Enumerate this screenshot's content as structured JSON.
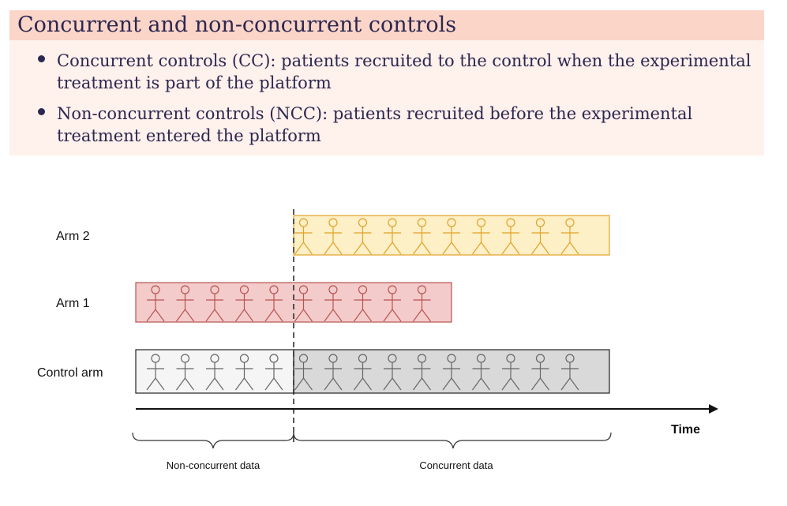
{
  "slide": {
    "title": "Concurrent and non-concurrent controls",
    "bullets": [
      {
        "text": "Concurrent controls (CC): patients recruited to the control when the experimental treatment is part of the platform"
      },
      {
        "text": "Non-concurrent controls (NCC): patients recruited before the experimental treatment entered the platform"
      }
    ]
  },
  "diagram": {
    "rows": [
      {
        "label": "Arm 2",
        "icon": "person-icon",
        "count": 10,
        "color": "#e3a227",
        "fill": "#fdefc6",
        "start_slot": 5
      },
      {
        "label": "Arm 1",
        "icon": "person-icon",
        "count": 10,
        "color": "#b85450",
        "fill": "#f3cbcb",
        "start_slot": 0
      },
      {
        "label": "Control arm",
        "icon": "person-icon",
        "count": 15,
        "color": "#666666",
        "fill_nonconcurrent": "#f5f5f5",
        "fill_concurrent": "#d9d9d9",
        "start_slot": 0
      }
    ],
    "time_label": "Time",
    "brace_labels": {
      "nonconcurrent": "Non-concurrent data",
      "concurrent": "Concurrent data"
    },
    "colors": {
      "header_bg": "#fbd5c8",
      "body_bg": "#fff1ec",
      "text": "#2b2750"
    }
  }
}
